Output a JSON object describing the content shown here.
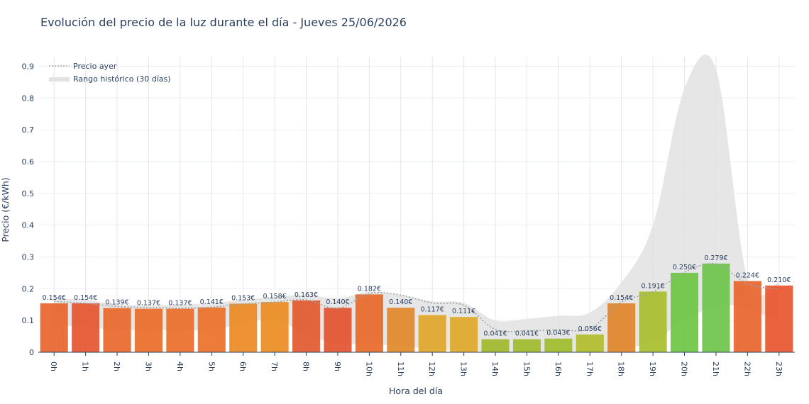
{
  "chart_data": {
    "type": "bar",
    "title": "Evolución del precio de la luz durante el día - Jueves 25/06/2026",
    "xlabel": "Hora del día",
    "ylabel": "Precio (€/kWh)",
    "ylim": [
      0,
      0.93
    ],
    "yticks": [
      0,
      0.1,
      0.2,
      0.3,
      0.4,
      0.5,
      0.6,
      0.7,
      0.8,
      0.9
    ],
    "ytick_labels": [
      "0",
      "0.1",
      "0.2",
      "0.3",
      "0.4",
      "0.5",
      "0.6",
      "0.7",
      "0.8",
      "0.9"
    ],
    "grid": true,
    "legend_position": "top-left",
    "categories": [
      "0h",
      "1h",
      "2h",
      "3h",
      "4h",
      "5h",
      "6h",
      "7h",
      "8h",
      "9h",
      "10h",
      "11h",
      "12h",
      "13h",
      "14h",
      "15h",
      "16h",
      "17h",
      "18h",
      "19h",
      "20h",
      "21h",
      "22h",
      "23h"
    ],
    "series": [
      {
        "values": [
          0.154,
          0.154,
          0.139,
          0.137,
          0.137,
          0.141,
          0.153,
          0.158,
          0.163,
          0.14,
          0.182,
          0.14,
          0.117,
          0.111,
          0.041,
          0.041,
          0.043,
          0.056,
          0.154,
          0.191,
          0.25,
          0.279,
          0.224,
          0.21
        ],
        "labels": [
          "0.154€",
          "0.154€",
          "0.139€",
          "0.137€",
          "0.137€",
          "0.141€",
          "0.153€",
          "0.158€",
          "0.163€",
          "0.140€",
          "0.182€",
          "0.140€",
          "0.117€",
          "0.111€",
          "0.041€",
          "0.041€",
          "0.043€",
          "0.056€",
          "0.154€",
          "0.191€",
          "0.250€",
          "0.279€",
          "0.224€",
          "0.210€"
        ],
        "colors": [
          "#e8642c",
          "#e65530",
          "#e8682a",
          "#e96b28",
          "#ea6d28",
          "#eb7028",
          "#ec8a22",
          "#ec8c22",
          "#e2592e",
          "#e2522e",
          "#e8692a",
          "#e1892a",
          "#e0a62a",
          "#e0a82a",
          "#9fba2c",
          "#9fbc2c",
          "#9fbd2c",
          "#b3bd2c",
          "#e0842a",
          "#a8be2c",
          "#6ec544",
          "#6cc44a",
          "#e8642c",
          "#e8562e"
        ]
      },
      {
        "name": "Precio ayer",
        "values": [
          0.16,
          0.154,
          0.144,
          0.141,
          0.139,
          0.142,
          0.152,
          0.158,
          0.165,
          0.138,
          0.185,
          0.18,
          0.155,
          0.148,
          0.072,
          0.068,
          0.071,
          0.074,
          0.158,
          0.19,
          0.252,
          0.278,
          0.215,
          0.199
        ],
        "color": "#9aa2a4"
      },
      {
        "name": "Rango histórico (30 días)",
        "low": [
          0.085,
          0.08,
          0.07,
          0.07,
          0.07,
          0.07,
          0.09,
          0.105,
          0.055,
          0.03,
          0.025,
          0.02,
          0.01,
          0.005,
          0.0,
          0.0,
          0.0,
          0.0,
          0.01,
          0.035,
          0.1,
          0.145,
          0.14,
          0.09
        ],
        "high": [
          0.17,
          0.165,
          0.15,
          0.148,
          0.15,
          0.155,
          0.165,
          0.175,
          0.18,
          0.17,
          0.19,
          0.18,
          0.16,
          0.155,
          0.1,
          0.105,
          0.115,
          0.125,
          0.22,
          0.4,
          0.83,
          0.89,
          0.23,
          0.22
        ],
        "color": "#e2e2e2"
      }
    ]
  }
}
